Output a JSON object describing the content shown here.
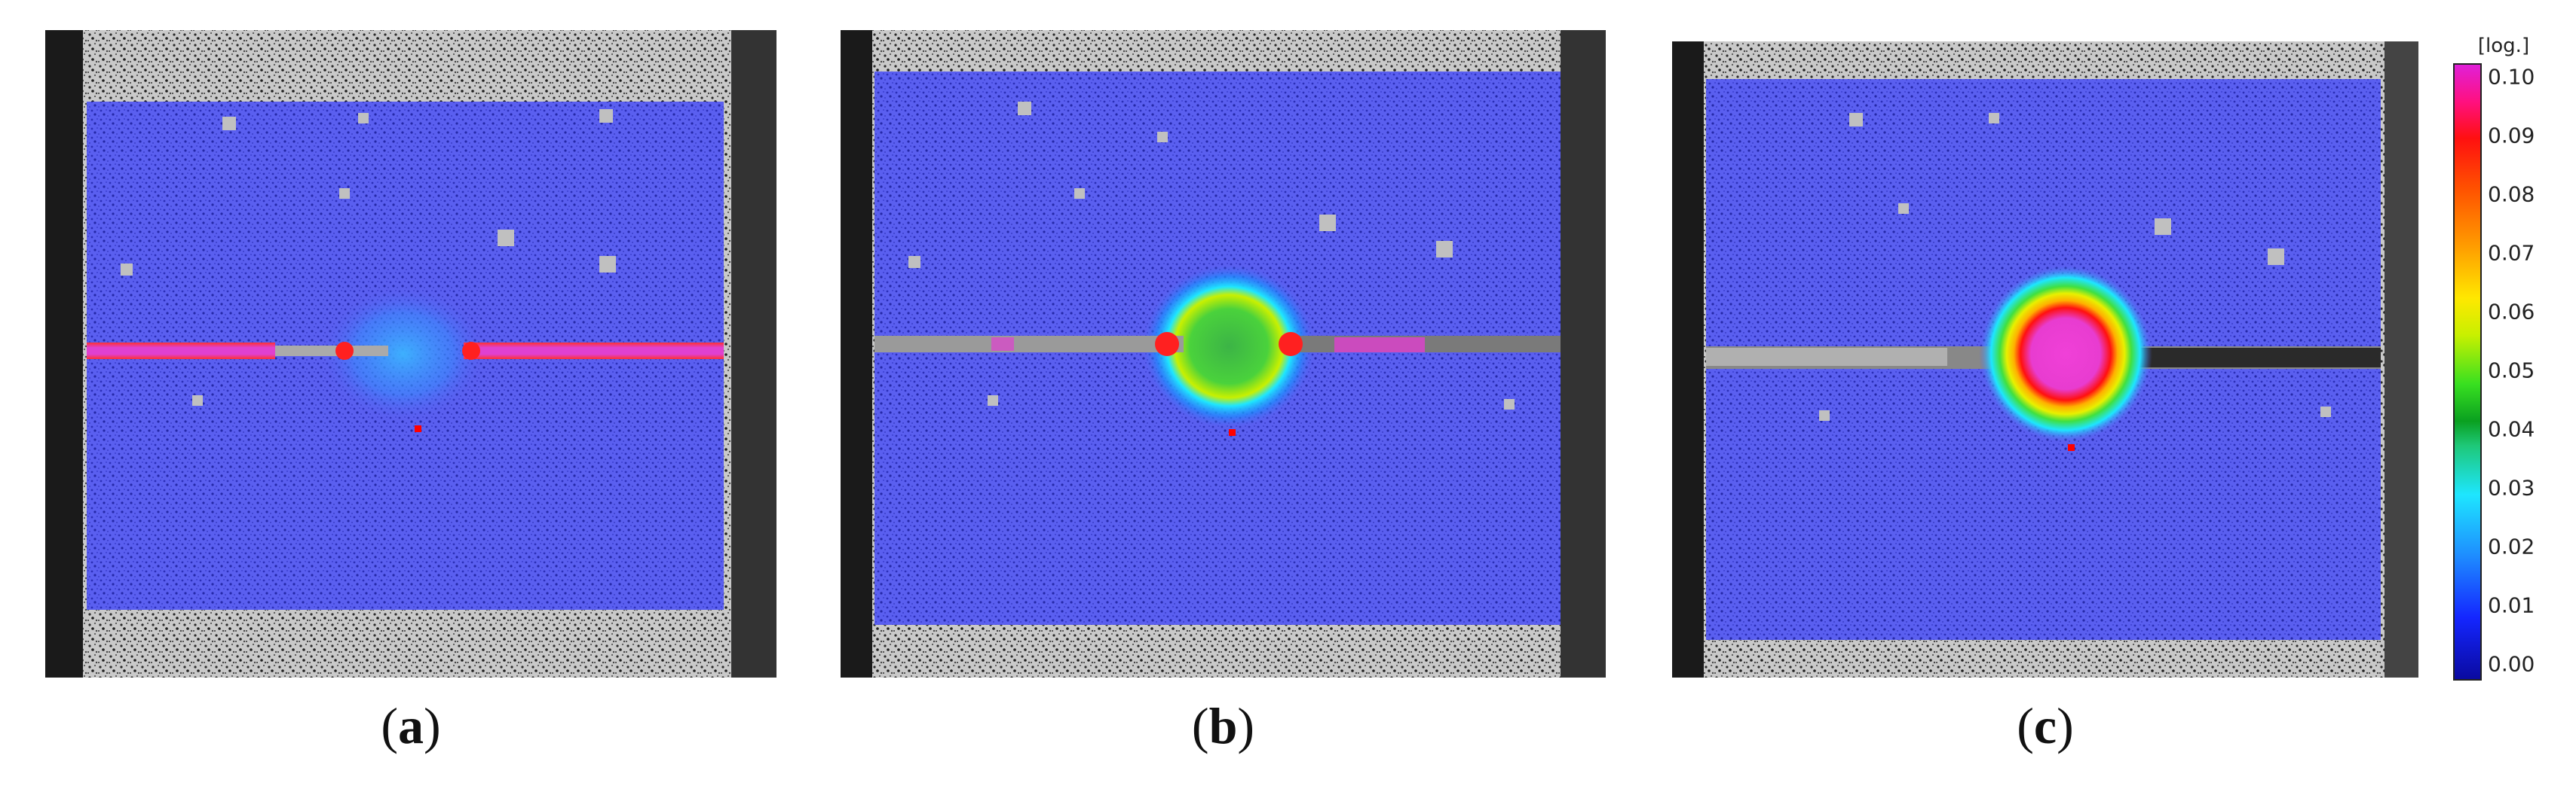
{
  "figure": {
    "panels": [
      {
        "label": "a",
        "caption_open": "(",
        "caption_close": ")"
      },
      {
        "label": "b",
        "caption_open": "(",
        "caption_close": ")"
      },
      {
        "label": "c",
        "caption_open": "(",
        "caption_close": ")"
      }
    ],
    "colorbar": {
      "unit": "[log.]",
      "ticks": [
        "0.10",
        "0.09",
        "0.08",
        "0.07",
        "0.06",
        "0.05",
        "0.04",
        "0.03",
        "0.02",
        "0.01",
        "0.00"
      ]
    }
  }
}
